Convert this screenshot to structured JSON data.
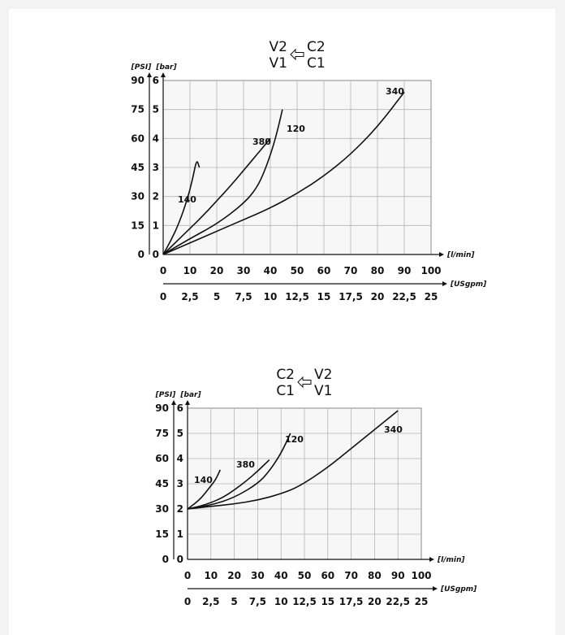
{
  "chart_data": [
    {
      "type": "line",
      "title": [
        "V2",
        "C2",
        "V1",
        "C1"
      ],
      "left_axis_label": "[PSI]",
      "ylabel": "[bar]",
      "xlabel": "[l/min]",
      "x2label": "[USgpm]",
      "x_ticks": [
        "0",
        "10",
        "20",
        "30",
        "40",
        "50",
        "60",
        "70",
        "80",
        "90",
        "100"
      ],
      "x2_ticks": [
        "0",
        "2,5",
        "5",
        "7,5",
        "10",
        "12,5",
        "15",
        "17,5",
        "20",
        "22,5",
        "25"
      ],
      "y_ticks": [
        "0",
        "1",
        "2",
        "3",
        "4",
        "5",
        "6"
      ],
      "y_psi_ticks": [
        "0",
        "15",
        "30",
        "45",
        "60",
        "75",
        "90"
      ],
      "xlim": [
        0,
        100
      ],
      "ylim": [
        0,
        6
      ],
      "grid": true,
      "series": [
        {
          "name": "140",
          "x": [
            0,
            3,
            6,
            9,
            11,
            12.5,
            13.5
          ],
          "y": [
            0,
            0.5,
            1.1,
            1.9,
            2.6,
            3.3,
            3.0
          ]
        },
        {
          "name": "380",
          "x": [
            0,
            5,
            10,
            15,
            20,
            25,
            30,
            35,
            40
          ],
          "y": [
            0,
            0.45,
            0.9,
            1.35,
            1.85,
            2.35,
            2.9,
            3.45,
            4.0
          ]
        },
        {
          "name": "120",
          "x": [
            0,
            10,
            20,
            30,
            35,
            38,
            41,
            43,
            44.5
          ],
          "y": [
            0,
            0.55,
            1.05,
            1.75,
            2.3,
            2.9,
            3.7,
            4.4,
            5.0
          ]
        },
        {
          "name": "340",
          "x": [
            0,
            10,
            20,
            30,
            40,
            50,
            60,
            70,
            80,
            90
          ],
          "y": [
            0,
            0.4,
            0.8,
            1.2,
            1.6,
            2.1,
            2.7,
            3.45,
            4.4,
            5.6
          ]
        }
      ]
    },
    {
      "type": "line",
      "title": [
        "C2",
        "V2",
        "C1",
        "V1"
      ],
      "left_axis_label": "[PSI]",
      "ylabel": "[bar]",
      "xlabel": "[l/min]",
      "x2label": "[USgpm]",
      "x_ticks": [
        "0",
        "10",
        "20",
        "30",
        "40",
        "50",
        "60",
        "70",
        "80",
        "90",
        "100"
      ],
      "x2_ticks": [
        "0",
        "2,5",
        "5",
        "7,5",
        "10",
        "12,5",
        "15",
        "17,5",
        "20",
        "22,5",
        "25"
      ],
      "y_ticks": [
        "0",
        "1",
        "2",
        "3",
        "4",
        "5",
        "6"
      ],
      "y_psi_ticks": [
        "0",
        "15",
        "30",
        "45",
        "60",
        "75",
        "90"
      ],
      "xlim": [
        0,
        100
      ],
      "ylim": [
        0,
        6
      ],
      "grid": true,
      "series": [
        {
          "name": "140",
          "x": [
            0,
            3,
            6,
            9,
            12,
            14
          ],
          "y": [
            2.0,
            2.2,
            2.45,
            2.8,
            3.15,
            3.55
          ]
        },
        {
          "name": "380",
          "x": [
            0,
            5,
            10,
            15,
            20,
            25,
            30,
            35
          ],
          "y": [
            2.0,
            2.1,
            2.25,
            2.45,
            2.75,
            3.1,
            3.5,
            3.95
          ]
        },
        {
          "name": "120",
          "x": [
            0,
            10,
            20,
            30,
            35,
            40,
            44
          ],
          "y": [
            2.0,
            2.15,
            2.45,
            3.0,
            3.5,
            4.2,
            5.0
          ]
        },
        {
          "name": "340",
          "x": [
            0,
            10,
            20,
            30,
            40,
            48,
            60,
            70,
            80,
            90
          ],
          "y": [
            2.0,
            2.1,
            2.2,
            2.35,
            2.6,
            2.9,
            3.65,
            4.4,
            5.15,
            5.9
          ]
        }
      ]
    }
  ]
}
